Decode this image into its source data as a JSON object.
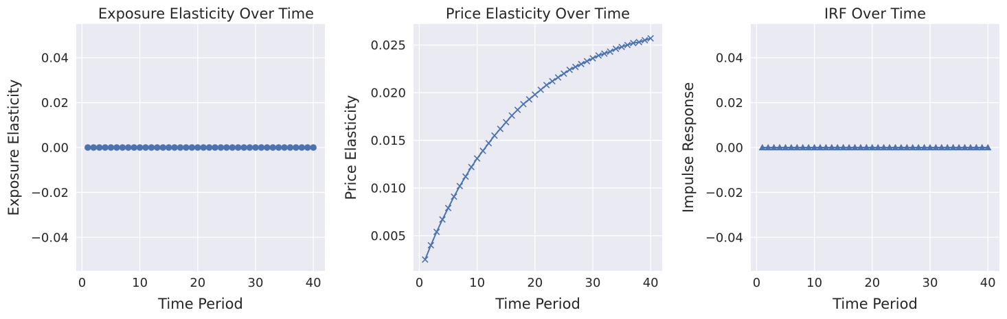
{
  "chart_data": [
    {
      "type": "line",
      "title": "Exposure Elasticity Over Time",
      "xlabel": "Time Period",
      "ylabel": "Exposure Elasticity",
      "xlim": [
        -1,
        42
      ],
      "ylim": [
        -0.055,
        0.055
      ],
      "xticks": [
        0,
        10,
        20,
        30,
        40
      ],
      "xtick_labels": [
        "0",
        "10",
        "20",
        "30",
        "40"
      ],
      "yticks": [
        -0.04,
        -0.02,
        0.0,
        0.02,
        0.04
      ],
      "ytick_labels": [
        "−0.04",
        "−0.02",
        "0.00",
        "0.02",
        "0.04"
      ],
      "grid": true,
      "marker": "circle",
      "color": "#4c72b0",
      "series": [
        {
          "x": [
            1,
            2,
            3,
            4,
            5,
            6,
            7,
            8,
            9,
            10,
            11,
            12,
            13,
            14,
            15,
            16,
            17,
            18,
            19,
            20,
            21,
            22,
            23,
            24,
            25,
            26,
            27,
            28,
            29,
            30,
            31,
            32,
            33,
            34,
            35,
            36,
            37,
            38,
            39,
            40
          ],
          "y": [
            0,
            0,
            0,
            0,
            0,
            0,
            0,
            0,
            0,
            0,
            0,
            0,
            0,
            0,
            0,
            0,
            0,
            0,
            0,
            0,
            0,
            0,
            0,
            0,
            0,
            0,
            0,
            0,
            0,
            0,
            0,
            0,
            0,
            0,
            0,
            0,
            0,
            0,
            0,
            0
          ]
        }
      ]
    },
    {
      "type": "line",
      "title": "Price Elasticity Over Time",
      "xlabel": "Time Period",
      "ylabel": "Price Elasticity",
      "xlim": [
        -1,
        42
      ],
      "ylim": [
        0.0013,
        0.0272
      ],
      "xticks": [
        0,
        10,
        20,
        30,
        40
      ],
      "xtick_labels": [
        "0",
        "10",
        "20",
        "30",
        "40"
      ],
      "yticks": [
        0.005,
        0.01,
        0.015,
        0.02,
        0.025
      ],
      "ytick_labels": [
        "0.005",
        "0.010",
        "0.015",
        "0.020",
        "0.025"
      ],
      "grid": true,
      "marker": "x",
      "color": "#4c72b0",
      "series": [
        {
          "x": [
            1,
            2,
            3,
            4,
            5,
            6,
            7,
            8,
            9,
            10,
            11,
            12,
            13,
            14,
            15,
            16,
            17,
            18,
            19,
            20,
            21,
            22,
            23,
            24,
            25,
            26,
            27,
            28,
            29,
            30,
            31,
            32,
            33,
            34,
            35,
            36,
            37,
            38,
            39,
            40
          ],
          "y": [
            0.0025,
            0.004,
            0.0054,
            0.0067,
            0.0079,
            0.0091,
            0.0102,
            0.0112,
            0.0122,
            0.0131,
            0.0139,
            0.0147,
            0.0155,
            0.0162,
            0.0169,
            0.0176,
            0.0182,
            0.0188,
            0.0193,
            0.0198,
            0.0203,
            0.0208,
            0.0212,
            0.0216,
            0.022,
            0.0224,
            0.0227,
            0.023,
            0.0233,
            0.0236,
            0.0239,
            0.0241,
            0.0243,
            0.0246,
            0.0248,
            0.025,
            0.0252,
            0.0253,
            0.0255,
            0.0257
          ]
        }
      ]
    },
    {
      "type": "line",
      "title": "IRF Over Time",
      "xlabel": "Time Period",
      "ylabel": "Impulse Response",
      "xlim": [
        -1,
        42
      ],
      "ylim": [
        -0.055,
        0.055
      ],
      "xticks": [
        0,
        10,
        20,
        30,
        40
      ],
      "xtick_labels": [
        "0",
        "10",
        "20",
        "30",
        "40"
      ],
      "yticks": [
        -0.04,
        -0.02,
        0.0,
        0.02,
        0.04
      ],
      "ytick_labels": [
        "−0.04",
        "−0.02",
        "0.00",
        "0.02",
        "0.04"
      ],
      "grid": true,
      "marker": "triangle",
      "color": "#4c72b0",
      "series": [
        {
          "x": [
            1,
            2,
            3,
            4,
            5,
            6,
            7,
            8,
            9,
            10,
            11,
            12,
            13,
            14,
            15,
            16,
            17,
            18,
            19,
            20,
            21,
            22,
            23,
            24,
            25,
            26,
            27,
            28,
            29,
            30,
            31,
            32,
            33,
            34,
            35,
            36,
            37,
            38,
            39,
            40
          ],
          "y": [
            0,
            0,
            0,
            0,
            0,
            0,
            0,
            0,
            0,
            0,
            0,
            0,
            0,
            0,
            0,
            0,
            0,
            0,
            0,
            0,
            0,
            0,
            0,
            0,
            0,
            0,
            0,
            0,
            0,
            0,
            0,
            0,
            0,
            0,
            0,
            0,
            0,
            0,
            0,
            0
          ]
        }
      ]
    }
  ]
}
